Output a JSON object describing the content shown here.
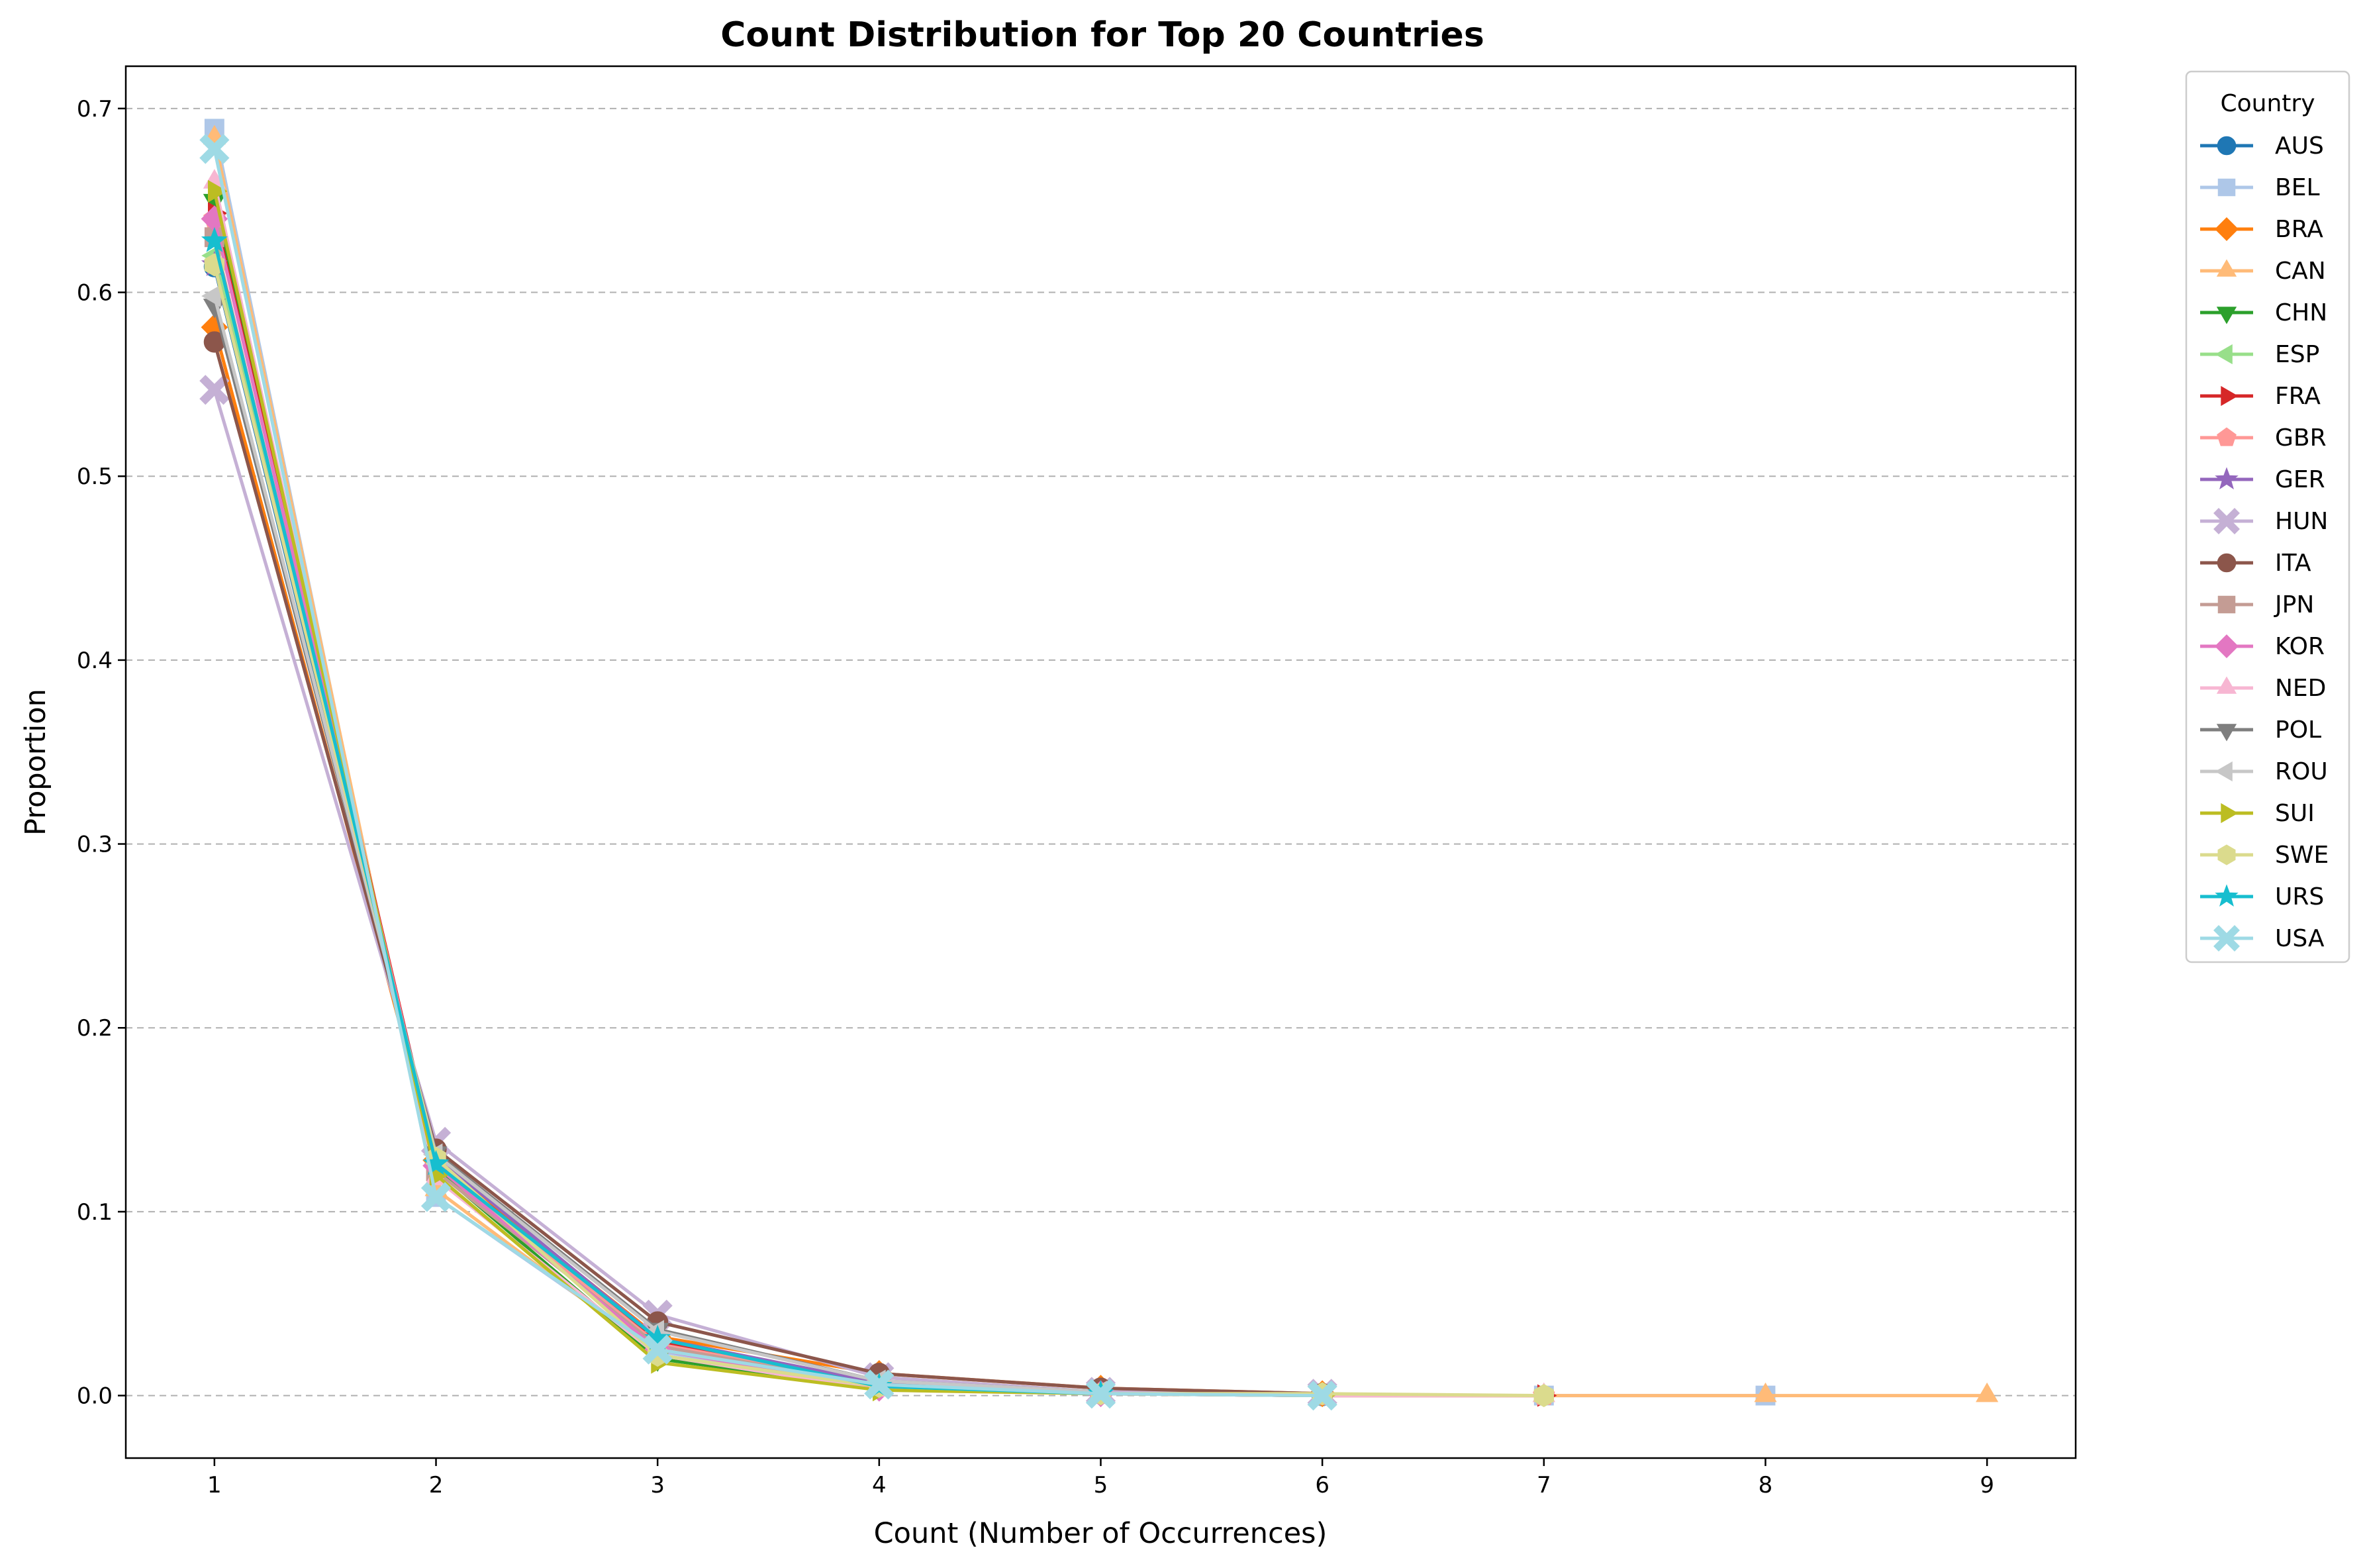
{
  "chart_data": {
    "type": "line",
    "title": "Count Distribution for Top 20 Countries",
    "xlabel": "Count (Number of Occurrences)",
    "ylabel": "Proportion",
    "xlim": [
      0.6,
      9.4
    ],
    "ylim": [
      -0.034,
      0.723
    ],
    "x_ticks": [
      "1",
      "2",
      "3",
      "4",
      "5",
      "6",
      "7",
      "8",
      "9"
    ],
    "y_ticks": [
      "0.0",
      "0.1",
      "0.2",
      "0.3",
      "0.4",
      "0.5",
      "0.6",
      "0.7"
    ],
    "grid": "horizontal dashed",
    "legend_title": "Country",
    "legend_position": "outside-right",
    "series": [
      {
        "name": "AUS",
        "color": "#1f77b4",
        "marker": "circle",
        "x": [
          1,
          2,
          3,
          4,
          5,
          6
        ],
        "y": [
          0.614,
          0.126,
          0.03,
          0.006,
          0.001,
          0.0
        ]
      },
      {
        "name": "BEL",
        "color": "#aec7e8",
        "marker": "square",
        "x": [
          1,
          2,
          3,
          4,
          5,
          6,
          7,
          8
        ],
        "y": [
          0.689,
          0.108,
          0.024,
          0.005,
          0.001,
          0.0,
          0.0,
          0.0
        ]
      },
      {
        "name": "BRA",
        "color": "#ff7f0e",
        "marker": "diamond",
        "x": [
          1,
          2,
          3,
          4,
          5,
          6
        ],
        "y": [
          0.581,
          0.128,
          0.032,
          0.012,
          0.004,
          0.001
        ]
      },
      {
        "name": "CAN",
        "color": "#ffbb78",
        "marker": "triangle-up",
        "x": [
          1,
          2,
          3,
          4,
          5,
          6,
          7,
          8,
          9
        ],
        "y": [
          0.684,
          0.112,
          0.022,
          0.004,
          0.001,
          0.0,
          0.0,
          0.0,
          0.0
        ]
      },
      {
        "name": "CHN",
        "color": "#2ca02c",
        "marker": "triangle-down",
        "x": [
          1,
          2,
          3,
          4,
          5
        ],
        "y": [
          0.65,
          0.123,
          0.02,
          0.004,
          0.001
        ]
      },
      {
        "name": "ESP",
        "color": "#98df8a",
        "marker": "triangle-left",
        "x": [
          1,
          2,
          3,
          4,
          5
        ],
        "y": [
          0.62,
          0.125,
          0.028,
          0.006,
          0.001
        ]
      },
      {
        "name": "FRA",
        "color": "#d62728",
        "marker": "triangle-right",
        "x": [
          1,
          2,
          3,
          4,
          5,
          6,
          7
        ],
        "y": [
          0.643,
          0.127,
          0.029,
          0.007,
          0.001,
          0.0,
          0.0
        ]
      },
      {
        "name": "GBR",
        "color": "#ff9896",
        "marker": "pentagon",
        "x": [
          1,
          2,
          3,
          4,
          5,
          6,
          7
        ],
        "y": [
          0.64,
          0.126,
          0.028,
          0.006,
          0.001,
          0.0,
          0.0
        ]
      },
      {
        "name": "GER",
        "color": "#9467bd",
        "marker": "star",
        "x": [
          1,
          2,
          3,
          4,
          5
        ],
        "y": [
          0.615,
          0.13,
          0.031,
          0.007,
          0.001
        ]
      },
      {
        "name": "HUN",
        "color": "#c5b0d5",
        "marker": "x-filled",
        "x": [
          1,
          2,
          3,
          4,
          5,
          6
        ],
        "y": [
          0.547,
          0.138,
          0.044,
          0.01,
          0.002,
          0.001
        ]
      },
      {
        "name": "ITA",
        "color": "#8c564b",
        "marker": "circle",
        "x": [
          1,
          2,
          3,
          4,
          5,
          6
        ],
        "y": [
          0.573,
          0.134,
          0.04,
          0.012,
          0.004,
          0.001
        ]
      },
      {
        "name": "JPN",
        "color": "#c49c94",
        "marker": "square",
        "x": [
          1,
          2,
          3,
          4,
          5
        ],
        "y": [
          0.63,
          0.122,
          0.027,
          0.005,
          0.001
        ]
      },
      {
        "name": "KOR",
        "color": "#e377c2",
        "marker": "diamond",
        "x": [
          1,
          2,
          3,
          4,
          5
        ],
        "y": [
          0.64,
          0.125,
          0.025,
          0.004,
          0.001
        ]
      },
      {
        "name": "NED",
        "color": "#f7b6d2",
        "marker": "triangle-up",
        "x": [
          1,
          2,
          3,
          4,
          5,
          6,
          7
        ],
        "y": [
          0.66,
          0.118,
          0.022,
          0.003,
          0.001,
          0.0,
          0.0
        ]
      },
      {
        "name": "POL",
        "color": "#7f7f7f",
        "marker": "triangle-down",
        "x": [
          1,
          2,
          3,
          4,
          5
        ],
        "y": [
          0.593,
          0.132,
          0.036,
          0.008,
          0.002
        ]
      },
      {
        "name": "ROU",
        "color": "#c7c7c7",
        "marker": "triangle-left",
        "x": [
          1,
          2,
          3,
          4,
          5
        ],
        "y": [
          0.598,
          0.131,
          0.035,
          0.008,
          0.002
        ]
      },
      {
        "name": "SUI",
        "color": "#bcbd22",
        "marker": "triangle-right",
        "x": [
          1,
          2,
          3,
          4,
          5,
          6
        ],
        "y": [
          0.655,
          0.12,
          0.018,
          0.003,
          0.001,
          0.0
        ]
      },
      {
        "name": "SWE",
        "color": "#dbdb8d",
        "marker": "hexagon",
        "x": [
          1,
          2,
          3,
          4,
          5,
          6,
          7
        ],
        "y": [
          0.615,
          0.129,
          0.022,
          0.005,
          0.001,
          0.001,
          0.0
        ]
      },
      {
        "name": "URS",
        "color": "#17becf",
        "marker": "star",
        "x": [
          1,
          2,
          3,
          4,
          5
        ],
        "y": [
          0.628,
          0.126,
          0.031,
          0.005,
          0.001
        ]
      },
      {
        "name": "USA",
        "color": "#9edae5",
        "marker": "x-filled",
        "x": [
          1,
          2,
          3,
          4,
          5,
          6
        ],
        "y": [
          0.678,
          0.108,
          0.025,
          0.006,
          0.001,
          0.0
        ]
      }
    ]
  }
}
